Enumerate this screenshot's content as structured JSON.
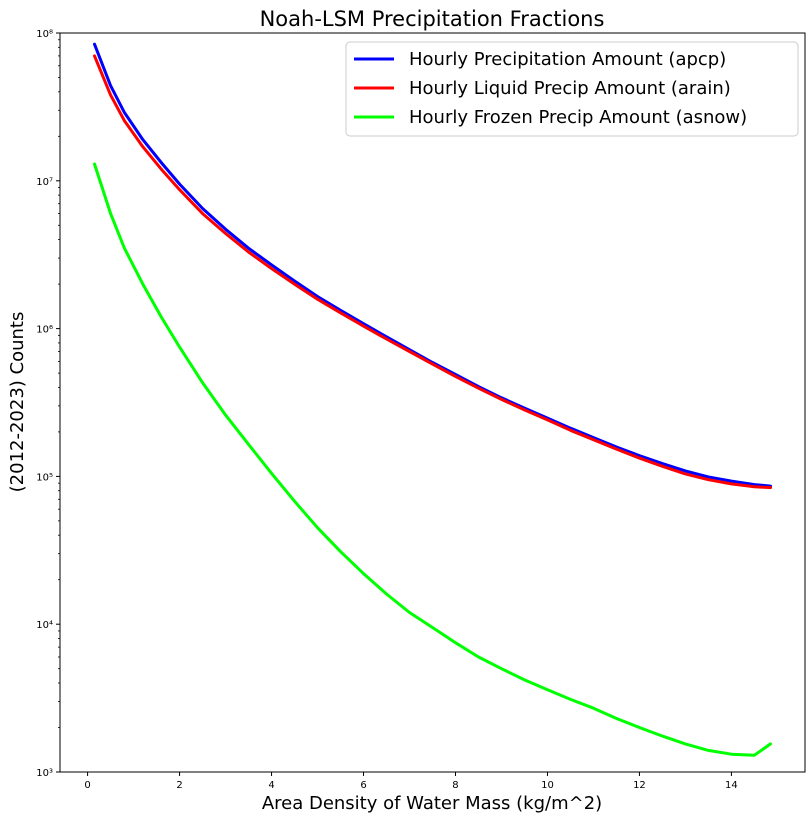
{
  "chart_data": {
    "type": "line",
    "title": "Noah-LSM Precipitation Fractions",
    "xlabel": "Area Density of Water Mass (kg/m^2)",
    "ylabel": "(2012-2023) Counts",
    "xlim": [
      -0.6,
      15.6
    ],
    "ylim": [
      1000,
      100000000
    ],
    "yscale": "log",
    "grid": false,
    "legend_position": "top-right",
    "x_ticks": [
      0,
      2,
      4,
      6,
      8,
      10,
      12,
      14
    ],
    "x_tick_labels": [
      "0",
      "2",
      "4",
      "6",
      "8",
      "10",
      "12",
      "14"
    ],
    "y_ticks": [
      1000,
      10000,
      100000,
      1000000,
      10000000,
      100000000
    ],
    "y_tick_labels": [
      "10³",
      "10⁴",
      "10⁵",
      "10⁶",
      "10⁷",
      "10⁸"
    ],
    "x": [
      0.15,
      0.5,
      0.8,
      1.2,
      1.6,
      2.0,
      2.5,
      3.0,
      3.5,
      4.0,
      4.5,
      5.0,
      5.5,
      6.0,
      6.5,
      7.0,
      7.5,
      8.0,
      8.5,
      9.0,
      9.5,
      10.0,
      10.5,
      11.0,
      11.5,
      12.0,
      12.5,
      13.0,
      13.5,
      14.0,
      14.5,
      14.85
    ],
    "series": [
      {
        "name": "Hourly Precipitation Amount (apcp)",
        "color": "#0000ff",
        "values": [
          84000000,
          44000000,
          29000000,
          19000000,
          13300000,
          9500000,
          6500000,
          4700000,
          3500000,
          2700000,
          2100000,
          1650000,
          1330000,
          1080000,
          880000,
          720000,
          590000,
          490000,
          405000,
          340000,
          290000,
          248000,
          212000,
          183000,
          158000,
          138000,
          122000,
          109000,
          99000,
          93000,
          88000,
          86000
        ]
      },
      {
        "name": "Hourly Liquid Precip Amount (arain)",
        "color": "#ff0000",
        "values": [
          70000000,
          38000000,
          25500000,
          17000000,
          12000000,
          8700000,
          6000000,
          4400000,
          3300000,
          2550000,
          2000000,
          1580000,
          1280000,
          1040000,
          850000,
          700000,
          575000,
          475000,
          395000,
          332000,
          282000,
          241000,
          205000,
          177000,
          153000,
          133000,
          117000,
          104000,
          95000,
          89000,
          85000,
          84000
        ]
      },
      {
        "name": "Hourly Frozen Precip Amount (asnow)",
        "color": "#00ff00",
        "values": [
          13000000,
          6000000,
          3500000,
          2000000,
          1200000,
          750000,
          430000,
          260000,
          165000,
          105000,
          68000,
          45000,
          31000,
          22000,
          16000,
          12000,
          9500,
          7500,
          6000,
          5000,
          4200,
          3600,
          3100,
          2700,
          2300,
          2000,
          1750,
          1550,
          1400,
          1320,
          1300,
          1550
        ]
      }
    ]
  }
}
